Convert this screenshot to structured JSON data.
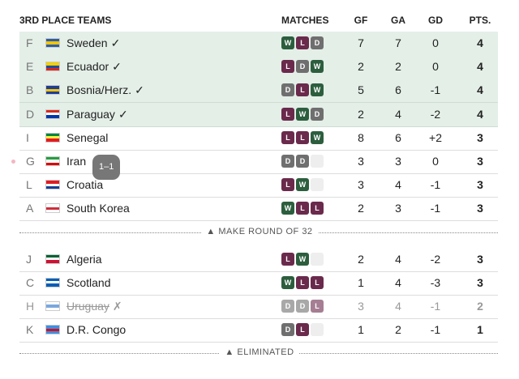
{
  "header": {
    "title": "3RD PLACE TEAMS",
    "columns": [
      "MATCHES",
      "GF",
      "GA",
      "GD",
      "PTS."
    ]
  },
  "groups": [
    {
      "divider": "▲ MAKE ROUND OF 32",
      "rows": [
        {
          "group": "F",
          "team": "Sweden",
          "mark": "✓",
          "matches": [
            "W",
            "L",
            "D"
          ],
          "gf": "7",
          "ga": "7",
          "gd": "0",
          "pts": "4",
          "highlight": true,
          "flag": [
            "#2b5ea7",
            "#f2c400",
            "#2b5ea7"
          ]
        },
        {
          "group": "E",
          "team": "Ecuador",
          "mark": "✓",
          "matches": [
            "L",
            "D",
            "W"
          ],
          "gf": "2",
          "ga": "2",
          "gd": "0",
          "pts": "4",
          "highlight": true,
          "flag": [
            "#f5d000",
            "#1d4fa0",
            "#d52b1e"
          ]
        },
        {
          "group": "B",
          "team": "Bosnia/Herz.",
          "mark": "✓",
          "matches": [
            "D",
            "L",
            "W"
          ],
          "gf": "5",
          "ga": "6",
          "gd": "-1",
          "pts": "4",
          "highlight": true,
          "flag": [
            "#1f3f94",
            "#f5c400",
            "#1f3f94"
          ]
        },
        {
          "group": "D",
          "team": "Paraguay",
          "mark": "✓",
          "matches": [
            "L",
            "W",
            "D"
          ],
          "gf": "2",
          "ga": "4",
          "gd": "-2",
          "pts": "4",
          "highlight": true,
          "flag": [
            "#d52b1e",
            "#ffffff",
            "#0038a8"
          ]
        },
        {
          "group": "I",
          "team": "Senegal",
          "matches": [
            "L",
            "L",
            "W"
          ],
          "gf": "8",
          "ga": "6",
          "gd": "+2",
          "pts": "3",
          "flag": [
            "#00853f",
            "#fdef42",
            "#e31b23"
          ]
        },
        {
          "group": "G",
          "team": "Iran",
          "badge": "1–1",
          "dot": true,
          "matches": [
            "D",
            "D",
            null
          ],
          "gf": "3",
          "ga": "3",
          "gd": "0",
          "pts": "3",
          "flag": [
            "#239f40",
            "#ffffff",
            "#da0000"
          ]
        },
        {
          "group": "L",
          "team": "Croatia",
          "matches": [
            "L",
            "W",
            null
          ],
          "gf": "3",
          "ga": "4",
          "gd": "-1",
          "pts": "3",
          "flag": [
            "#e21b23",
            "#ffffff",
            "#1a3e95"
          ]
        },
        {
          "group": "A",
          "team": "South Korea",
          "matches": [
            "W",
            "L",
            "L"
          ],
          "gf": "2",
          "ga": "3",
          "gd": "-1",
          "pts": "3",
          "flag": [
            "#ffffff",
            "#cd2e3a",
            "#ffffff"
          ]
        }
      ]
    },
    {
      "divider": "▲ ELIMINATED",
      "rows": [
        {
          "group": "J",
          "team": "Algeria",
          "matches": [
            "L",
            "W",
            null
          ],
          "gf": "2",
          "ga": "4",
          "gd": "-2",
          "pts": "3",
          "flag": [
            "#006233",
            "#ffffff",
            "#d21034"
          ]
        },
        {
          "group": "C",
          "team": "Scotland",
          "matches": [
            "W",
            "L",
            "L"
          ],
          "gf": "1",
          "ga": "4",
          "gd": "-3",
          "pts": "3",
          "flag": [
            "#005eb8",
            "#ffffff",
            "#005eb8"
          ]
        },
        {
          "group": "H",
          "team": "Uruguay",
          "mark": "✗",
          "struck": true,
          "matches": [
            "D",
            "D",
            "L"
          ],
          "gf": "3",
          "ga": "4",
          "gd": "-1",
          "pts": "2",
          "flag": [
            "#ffffff",
            "#7ba7dc",
            "#ffffff"
          ]
        },
        {
          "group": "K",
          "team": "D.R. Congo",
          "matches": [
            "D",
            "L",
            null
          ],
          "gf": "1",
          "ga": "2",
          "gd": "-1",
          "pts": "1",
          "flag": [
            "#3d8fe0",
            "#ce1021",
            "#3d8fe0"
          ]
        }
      ]
    }
  ]
}
